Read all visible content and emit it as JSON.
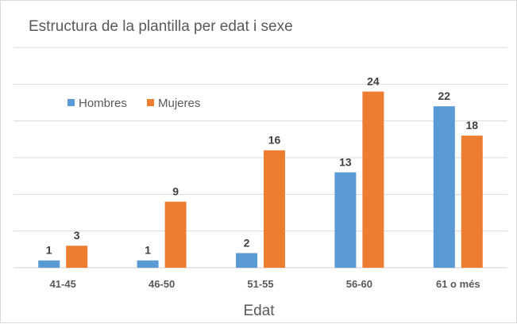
{
  "chart_data": {
    "type": "bar",
    "title": "Estructura de la plantilla per edat i sexe",
    "xlabel": "Edat",
    "ylabel": "",
    "categories": [
      "41-45",
      "46-50",
      "51-55",
      "56-60",
      "61 o més"
    ],
    "series": [
      {
        "name": "Hombres",
        "values": [
          1,
          1,
          2,
          13,
          22
        ],
        "color": "#5b9bd5"
      },
      {
        "name": "Mujeres",
        "values": [
          3,
          9,
          16,
          24,
          18
        ],
        "color": "#ed7d31"
      }
    ],
    "ylim": [
      0,
      30
    ],
    "ytick_step": 5,
    "grid": true,
    "y_tick_labels_shown": false,
    "data_labels": true,
    "legend": "top-left"
  }
}
